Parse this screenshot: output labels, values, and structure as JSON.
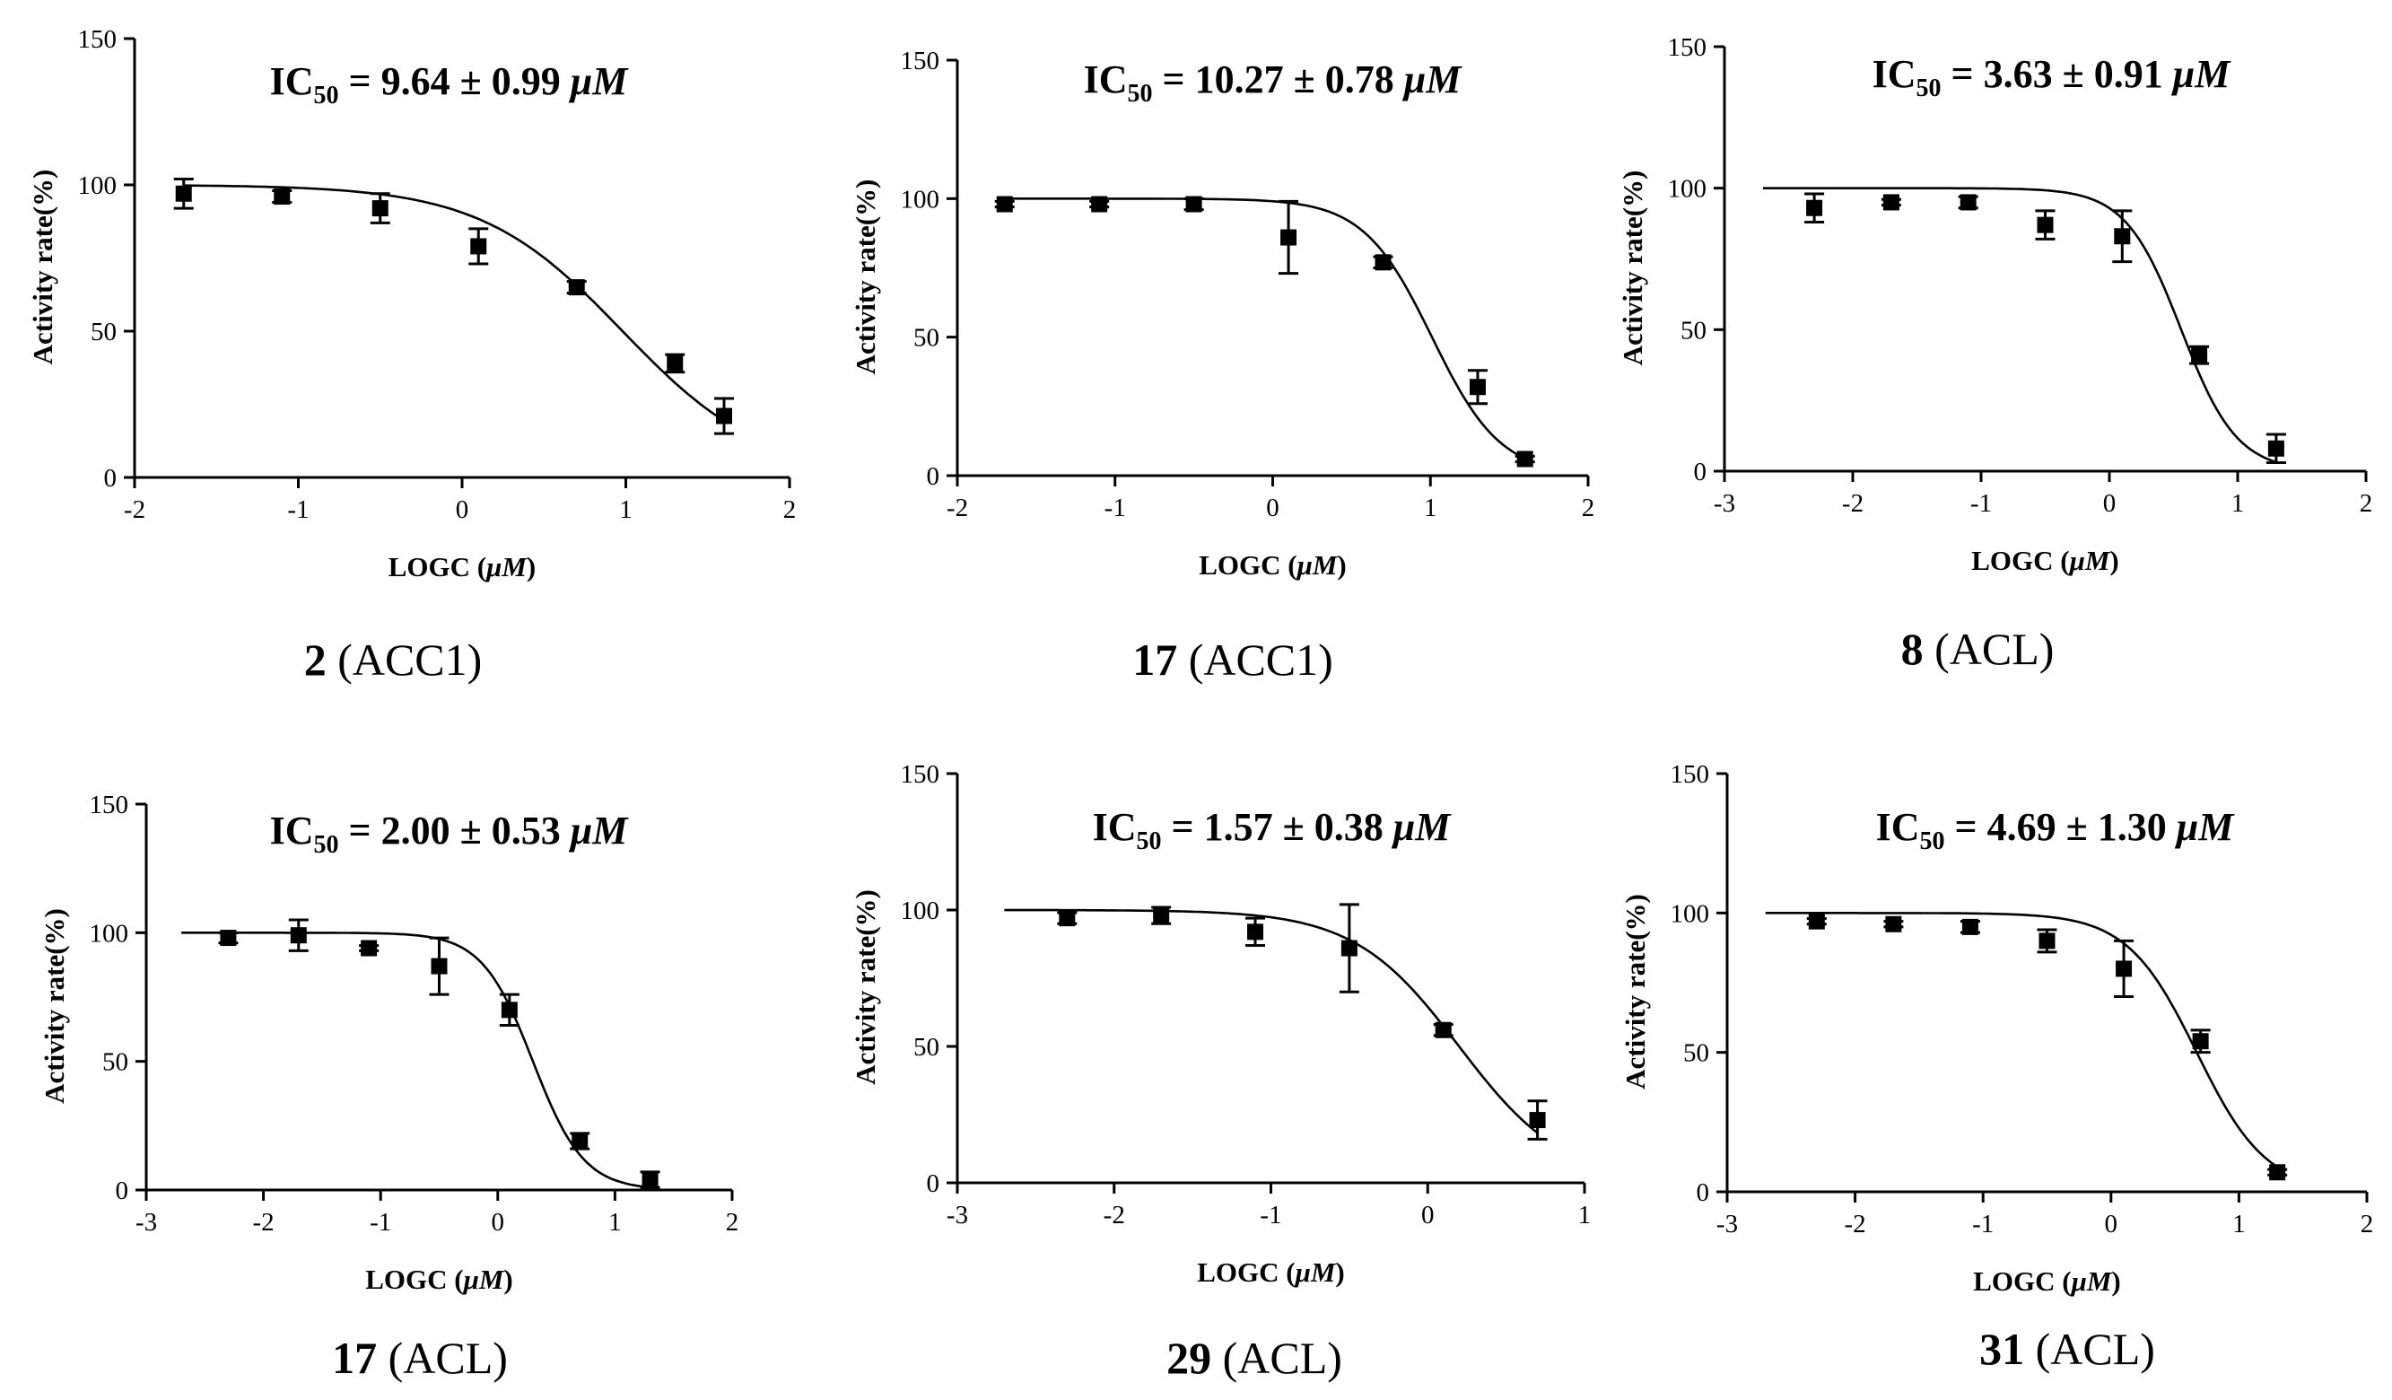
{
  "chart_data": [
    {
      "id": "p1",
      "type": "scatter",
      "title_prefix": "IC",
      "title_sub": "50",
      "title_value": " = 9.64 ± 0.99 ",
      "title_unit": "μM",
      "xlabel_main": "LOGC (",
      "xlabel_unit": "μM",
      "xlabel_end": ")",
      "ylabel": "Activity rate(%)",
      "caption_compound": "2",
      "caption_target": " (ACC1)",
      "xlim": [
        -2,
        2
      ],
      "ylim": [
        0,
        150
      ],
      "xticks": [
        -2,
        -1,
        0,
        1,
        2
      ],
      "yticks": [
        0,
        50,
        100,
        150
      ],
      "ic50_log": 0.98,
      "hill": 1.0,
      "points": [
        {
          "x": -1.7,
          "y": 97,
          "err": 5
        },
        {
          "x": -1.1,
          "y": 96,
          "err": 2
        },
        {
          "x": -0.5,
          "y": 92,
          "err": 5
        },
        {
          "x": 0.1,
          "y": 79,
          "err": 6
        },
        {
          "x": 0.7,
          "y": 65,
          "err": 2
        },
        {
          "x": 1.3,
          "y": 39,
          "err": 3
        },
        {
          "x": 1.6,
          "y": 21,
          "err": 6
        }
      ]
    },
    {
      "id": "p2",
      "type": "scatter",
      "title_prefix": "IC",
      "title_sub": "50",
      "title_value": " = 10.27 ± 0.78 ",
      "title_unit": "μM",
      "xlabel_main": "LOGC (",
      "xlabel_unit": "μM",
      "xlabel_end": ")",
      "ylabel": "Activity rate(%)",
      "caption_compound": "17",
      "caption_target": " (ACC1)",
      "xlim": [
        -2,
        2
      ],
      "ylim": [
        0,
        150
      ],
      "xticks": [
        -2,
        -1,
        0,
        1,
        2
      ],
      "yticks": [
        0,
        50,
        100,
        150
      ],
      "ic50_log": 1.01,
      "hill": 2.0,
      "points": [
        {
          "x": -1.7,
          "y": 98,
          "err": 1
        },
        {
          "x": -1.1,
          "y": 98,
          "err": 1
        },
        {
          "x": -0.5,
          "y": 98,
          "err": 2
        },
        {
          "x": 0.1,
          "y": 86,
          "err": 13
        },
        {
          "x": 0.7,
          "y": 77,
          "err": 2
        },
        {
          "x": 1.3,
          "y": 32,
          "err": 6
        },
        {
          "x": 1.6,
          "y": 6,
          "err": 1
        }
      ]
    },
    {
      "id": "p3",
      "type": "scatter",
      "title_prefix": "IC",
      "title_sub": "50",
      "title_value": " = 3.63 ± 0.91 ",
      "title_unit": "μM",
      "xlabel_main": "LOGC (",
      "xlabel_unit": "μM",
      "xlabel_end": ")",
      "ylabel": "Activity rate(%)",
      "caption_compound": "8",
      "caption_target": " (ACL)",
      "xlim": [
        -3,
        2
      ],
      "ylim": [
        0,
        150
      ],
      "xticks": [
        -3,
        -2,
        -1,
        0,
        1,
        2
      ],
      "yticks": [
        0,
        50,
        100,
        150
      ],
      "ic50_log": 0.56,
      "hill": 2.0,
      "points": [
        {
          "x": -2.3,
          "y": 93,
          "err": 5
        },
        {
          "x": -1.7,
          "y": 95,
          "err": 1
        },
        {
          "x": -1.1,
          "y": 95,
          "err": 2
        },
        {
          "x": -0.5,
          "y": 87,
          "err": 5
        },
        {
          "x": 0.1,
          "y": 83,
          "err": 9
        },
        {
          "x": 0.7,
          "y": 41,
          "err": 3
        },
        {
          "x": 1.3,
          "y": 8,
          "err": 5
        }
      ]
    },
    {
      "id": "p4",
      "type": "scatter",
      "title_prefix": "IC",
      "title_sub": "50",
      "title_value": " = 2.00 ± 0.53 ",
      "title_unit": "μM",
      "xlabel_main": "LOGC (",
      "xlabel_unit": "μM",
      "xlabel_end": ")",
      "ylabel": "Activity rate(%)",
      "caption_compound": "17",
      "caption_target": " (ACL)",
      "xlim": [
        -3,
        2
      ],
      "ylim": [
        0,
        150
      ],
      "xticks": [
        -3,
        -2,
        -1,
        0,
        1,
        2
      ],
      "yticks": [
        0,
        50,
        100,
        150
      ],
      "ic50_log": 0.3,
      "hill": 2.0,
      "points": [
        {
          "x": -2.3,
          "y": 98,
          "err": 2
        },
        {
          "x": -1.7,
          "y": 99,
          "err": 6
        },
        {
          "x": -1.1,
          "y": 94,
          "err": 1
        },
        {
          "x": -0.5,
          "y": 87,
          "err": 11
        },
        {
          "x": 0.1,
          "y": 70,
          "err": 6
        },
        {
          "x": 0.7,
          "y": 19,
          "err": 3
        },
        {
          "x": 1.3,
          "y": 4,
          "err": 3
        }
      ]
    },
    {
      "id": "p5",
      "type": "scatter",
      "title_prefix": "IC",
      "title_sub": "50",
      "title_value": " = 1.57 ± 0.38 ",
      "title_unit": "μM",
      "xlabel_main": "LOGC (",
      "xlabel_unit": "μM",
      "xlabel_end": ")",
      "ylabel": "Activity rate(%)",
      "caption_compound": "29",
      "caption_target": " (ACL)",
      "xlim": [
        -3,
        1
      ],
      "ylim": [
        0,
        150
      ],
      "xticks": [
        -3,
        -2,
        -1,
        0,
        1
      ],
      "yticks": [
        0,
        50,
        100,
        150
      ],
      "ic50_log": 0.2,
      "hill": 1.3,
      "points": [
        {
          "x": -2.3,
          "y": 97,
          "err": 2
        },
        {
          "x": -1.7,
          "y": 98,
          "err": 3
        },
        {
          "x": -1.1,
          "y": 92,
          "err": 5
        },
        {
          "x": -0.5,
          "y": 86,
          "err": 16
        },
        {
          "x": 0.1,
          "y": 56,
          "err": 2
        },
        {
          "x": 0.7,
          "y": 23,
          "err": 7
        }
      ]
    },
    {
      "id": "p6",
      "type": "scatter",
      "title_prefix": "IC",
      "title_sub": "50",
      "title_value": " = 4.69 ± 1.30 ",
      "title_unit": "μM",
      "xlabel_main": "LOGC (",
      "xlabel_unit": "μM",
      "xlabel_end": ")",
      "ylabel": "Activity rate(%)",
      "caption_compound": "31",
      "caption_target": " (ACL)",
      "xlim": [
        -3,
        2
      ],
      "ylim": [
        0,
        150
      ],
      "xticks": [
        -3,
        -2,
        -1,
        0,
        1,
        2
      ],
      "yticks": [
        0,
        50,
        100,
        150
      ],
      "ic50_log": 0.67,
      "hill": 1.6,
      "points": [
        {
          "x": -2.3,
          "y": 97,
          "err": 1
        },
        {
          "x": -1.7,
          "y": 96,
          "err": 1
        },
        {
          "x": -1.1,
          "y": 95,
          "err": 2
        },
        {
          "x": -0.5,
          "y": 90,
          "err": 4
        },
        {
          "x": 0.1,
          "y": 80,
          "err": 10
        },
        {
          "x": 0.7,
          "y": 54,
          "err": 4
        },
        {
          "x": 1.3,
          "y": 7,
          "err": 1
        }
      ]
    }
  ]
}
